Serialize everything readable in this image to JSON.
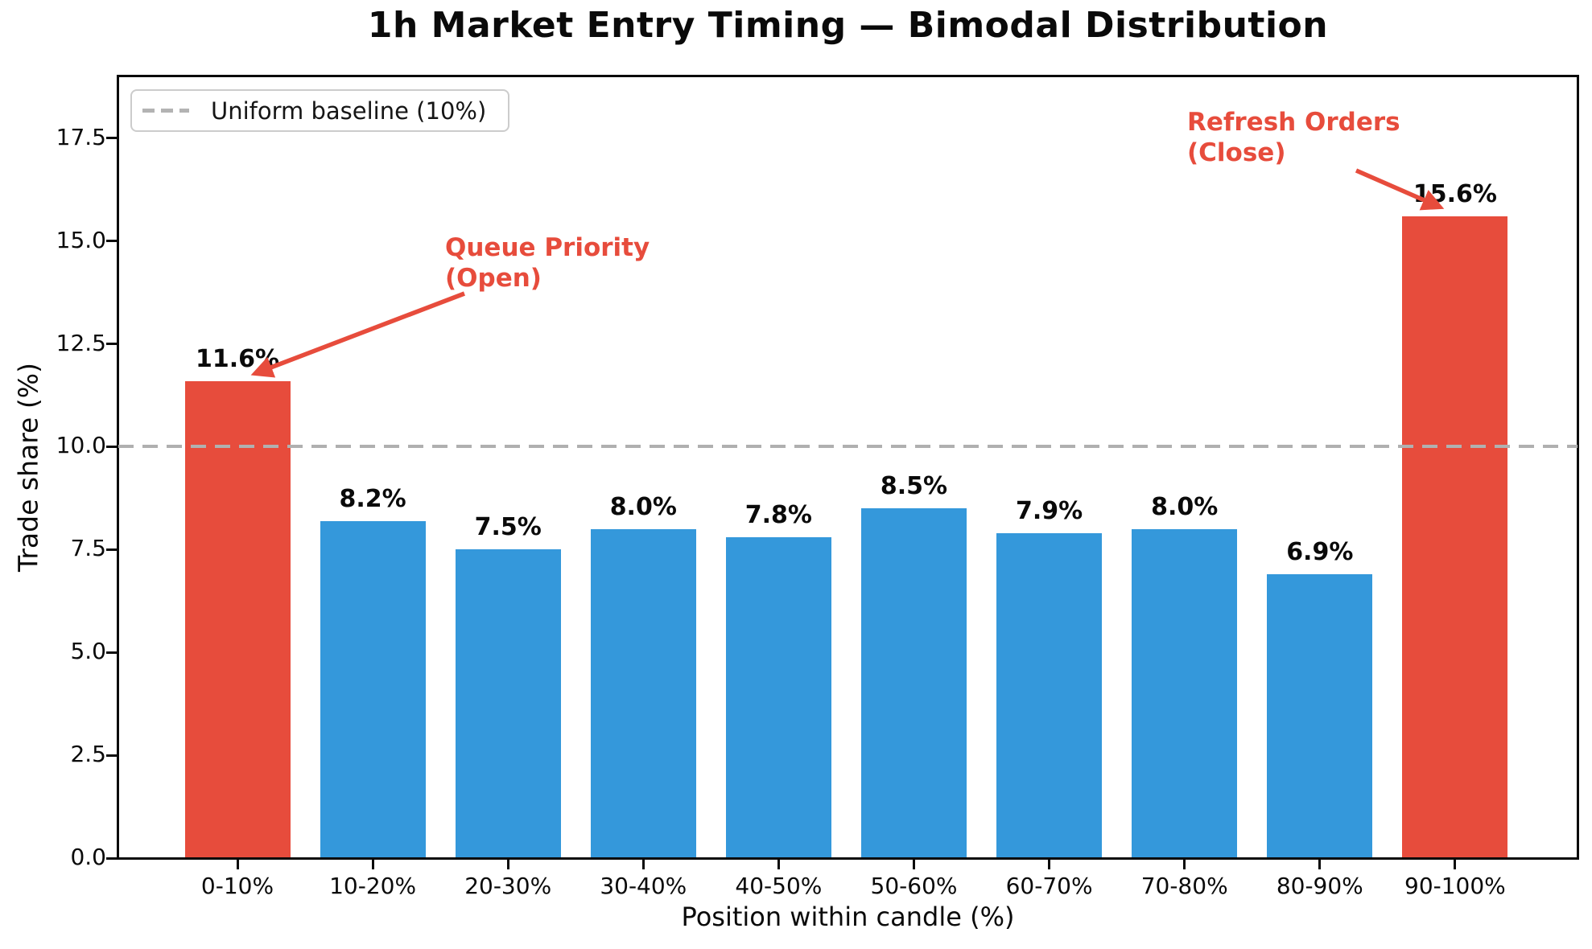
{
  "chart_title": "1h Market Entry Timing — Bimodal Distribution",
  "legend": {
    "baseline_label": "Uniform baseline (10%)"
  },
  "axes": {
    "x_label": "Position within candle (%)",
    "y_label": "Trade share (%)"
  },
  "annotations": {
    "open": {
      "line1": "Queue Priority",
      "line2": "(Open)"
    },
    "close": {
      "line1": "Refresh Orders",
      "line2": "(Close)"
    }
  },
  "colors": {
    "bar_blue": "#3498db",
    "bar_red": "#e74c3c",
    "baseline_gray": "#b0b0b0",
    "annotation_red": "#e74c3c"
  },
  "chart_data": {
    "type": "bar",
    "title": "1h Market Entry Timing — Bimodal Distribution",
    "xlabel": "Position within candle (%)",
    "ylabel": "Trade share (%)",
    "categories": [
      "0-10%",
      "10-20%",
      "20-30%",
      "30-40%",
      "40-50%",
      "50-60%",
      "60-70%",
      "70-80%",
      "80-90%",
      "90-100%"
    ],
    "values": [
      11.6,
      8.2,
      7.5,
      8.0,
      7.8,
      8.5,
      7.9,
      8.0,
      6.9,
      15.6
    ],
    "bar_labels": [
      "11.6%",
      "8.2%",
      "7.5%",
      "8.0%",
      "7.8%",
      "8.5%",
      "7.9%",
      "8.0%",
      "6.9%",
      "15.6%"
    ],
    "highlighted_indices": [
      0,
      9
    ],
    "baseline": {
      "value": 10.0,
      "label": "Uniform baseline (10%)"
    },
    "ylim": [
      0,
      19.0
    ],
    "y_ticks": [
      0.0,
      2.5,
      5.0,
      7.5,
      10.0,
      12.5,
      15.0,
      17.5
    ],
    "y_tick_labels": [
      "0.0",
      "2.5",
      "5.0",
      "7.5",
      "10.0",
      "12.5",
      "15.0",
      "17.5"
    ],
    "legend_position": "upper left",
    "grid": false
  }
}
